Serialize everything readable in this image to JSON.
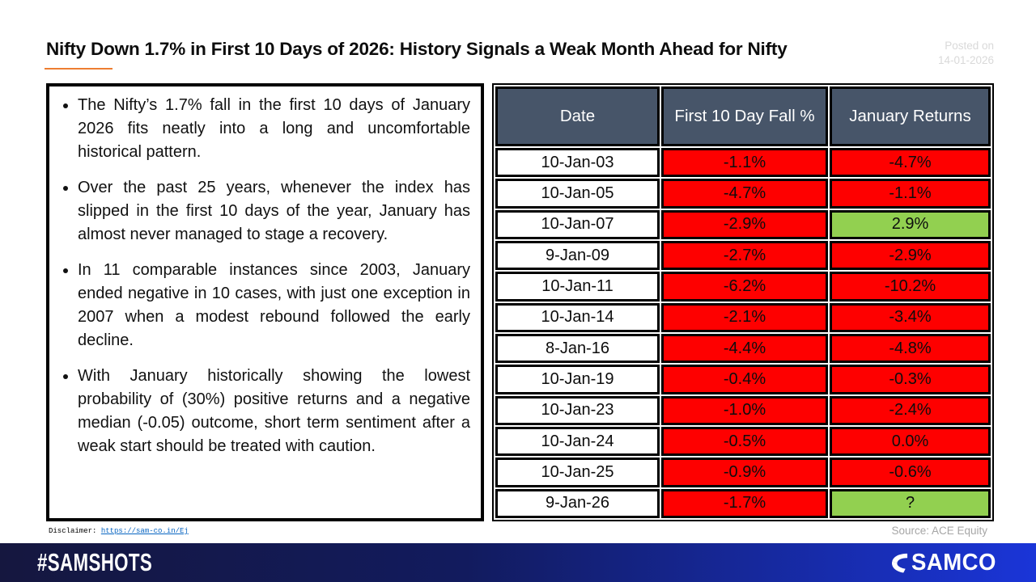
{
  "header": {
    "title": "Nifty Down 1.7% in First 10 Days of 2026: History Signals a Weak Month Ahead for Nifty",
    "posted_on_label": "Posted on",
    "posted_on_date": "14-01-2026"
  },
  "bullets": [
    "The Nifty’s 1.7% fall in the first 10 days of January 2026 fits neatly into a long and uncomfortable historical pattern.",
    "Over the past 25 years, whenever the index has slipped in the first 10  days of the year, January has almost never managed to stage a recovery.",
    "In 11 comparable instances since 2003, January ended negative in 10 cases, with just one exception in 2007 when a modest rebound followed the early decline.",
    "With January historically showing the lowest probability of (30%) positive returns and a negative median (-0.05) outcome, short term sentiment after a weak start should be treated with caution."
  ],
  "table": {
    "columns": [
      "Date",
      "First 10 Day Fall %",
      "January  Returns"
    ],
    "rows": [
      {
        "date": "10-Jan-03",
        "fall": "-1.1%",
        "returns": "-4.7%",
        "returns_positive": false
      },
      {
        "date": "10-Jan-05",
        "fall": "-4.7%",
        "returns": "-1.1%",
        "returns_positive": false
      },
      {
        "date": "10-Jan-07",
        "fall": "-2.9%",
        "returns": "2.9%",
        "returns_positive": true
      },
      {
        "date": "9-Jan-09",
        "fall": "-2.7%",
        "returns": "-2.9%",
        "returns_positive": false
      },
      {
        "date": "10-Jan-11",
        "fall": "-6.2%",
        "returns": "-10.2%",
        "returns_positive": false
      },
      {
        "date": "10-Jan-14",
        "fall": "-2.1%",
        "returns": "-3.4%",
        "returns_positive": false
      },
      {
        "date": "8-Jan-16",
        "fall": "-4.4%",
        "returns": "-4.8%",
        "returns_positive": false
      },
      {
        "date": "10-Jan-19",
        "fall": "-0.4%",
        "returns": "-0.3%",
        "returns_positive": false
      },
      {
        "date": "10-Jan-23",
        "fall": "-1.0%",
        "returns": "-2.4%",
        "returns_positive": false
      },
      {
        "date": "10-Jan-24",
        "fall": "-0.5%",
        "returns": "0.0%",
        "returns_positive": false
      },
      {
        "date": "10-Jan-25",
        "fall": "-0.9%",
        "returns": "-0.6%",
        "returns_positive": false
      },
      {
        "date": "9-Jan-26",
        "fall": "-1.7%",
        "returns": "?",
        "returns_positive": true
      }
    ],
    "source": "Source: ACE Equity"
  },
  "disclaimer": {
    "label": "Disclaimer: ",
    "link": "https://sam-co.in/Ej"
  },
  "footer": {
    "hashtag": "#SAMSHOTS",
    "brand": "SAMCO"
  },
  "colors": {
    "negative": "#FE0000",
    "positive": "#92D050",
    "header_bg": "#475569",
    "accent_underline": "#ED7D31",
    "footer_dark": "#15173F",
    "footer_blue": "#1A35D8"
  }
}
